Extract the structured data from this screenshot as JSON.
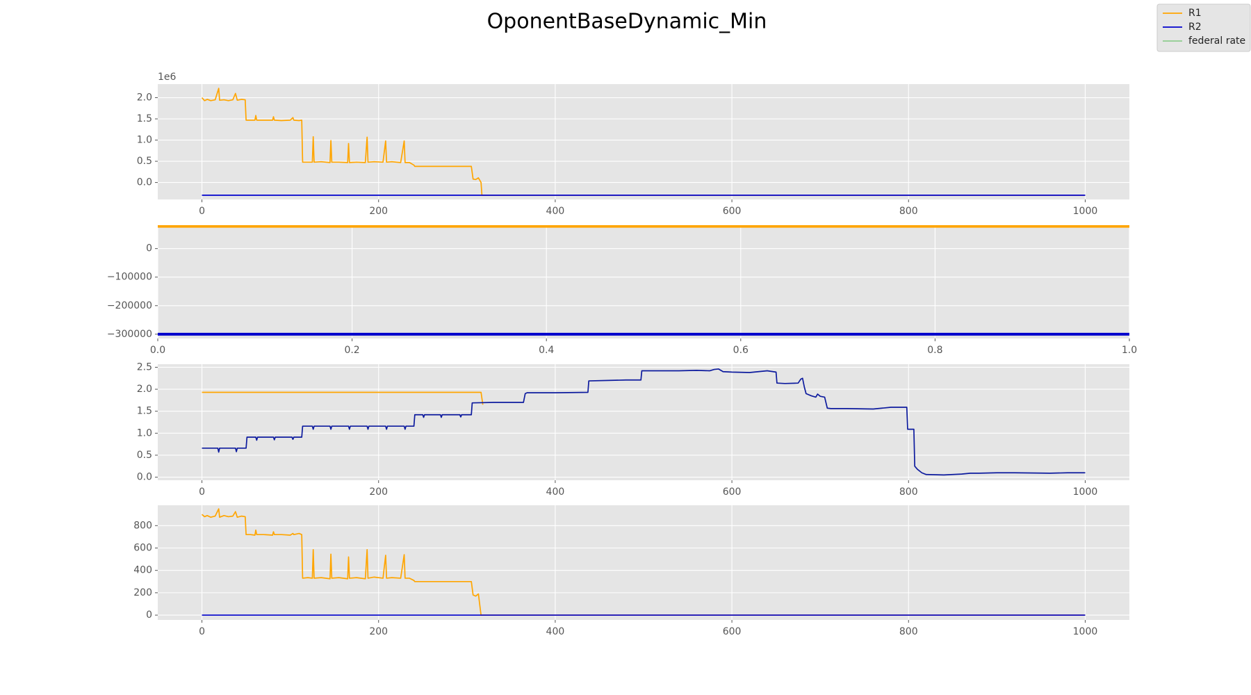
{
  "title": "OponentBaseDynamic_Min",
  "legend": {
    "loc": "upper right",
    "entries": [
      {
        "name": "R1",
        "color": "#ffa500"
      },
      {
        "name": "R2",
        "color": "#0000cd"
      },
      {
        "name": "federal rate",
        "color": "#8fcc8f"
      }
    ]
  },
  "chart_data": [
    {
      "type": "line",
      "grid": true,
      "offset_label": "1e6",
      "xlim": [
        -50,
        1050
      ],
      "xticks": [
        0,
        200,
        400,
        600,
        800,
        1000
      ],
      "ylim": [
        -0.4,
        2.32
      ],
      "yticks": [
        {
          "value": 0,
          "label": "0.0"
        },
        {
          "value": 0.5,
          "label": "0.5"
        },
        {
          "value": 1,
          "label": "1.0"
        },
        {
          "value": 1.5,
          "label": "1.5"
        },
        {
          "value": 2,
          "label": "2.0"
        }
      ],
      "series": [
        {
          "color": "#ffa500",
          "x": [
            0,
            3,
            6,
            10,
            15,
            19,
            20,
            25,
            30,
            35,
            38,
            40,
            45,
            49,
            50,
            55,
            60,
            61,
            62,
            70,
            80,
            81,
            82,
            90,
            100,
            103,
            104,
            110,
            113,
            114,
            120,
            125,
            126,
            127,
            135,
            145,
            146,
            147,
            155,
            165,
            166,
            167,
            175,
            185,
            187,
            188,
            195,
            205,
            208,
            209,
            215,
            225,
            229,
            230,
            235,
            240,
            241,
            260,
            280,
            305,
            307,
            310,
            313,
            316,
            317,
            1000
          ],
          "values": [
            2.0,
            1.93,
            1.96,
            1.93,
            1.95,
            2.22,
            1.94,
            1.95,
            1.93,
            1.95,
            2.1,
            1.94,
            1.96,
            1.95,
            1.47,
            1.47,
            1.47,
            1.58,
            1.47,
            1.47,
            1.47,
            1.55,
            1.47,
            1.46,
            1.47,
            1.53,
            1.47,
            1.46,
            1.47,
            0.48,
            0.48,
            0.48,
            1.08,
            0.48,
            0.49,
            0.47,
            0.99,
            0.48,
            0.48,
            0.47,
            0.92,
            0.47,
            0.48,
            0.47,
            1.07,
            0.48,
            0.49,
            0.48,
            0.98,
            0.48,
            0.49,
            0.47,
            0.98,
            0.47,
            0.47,
            0.41,
            0.38,
            0.38,
            0.38,
            0.38,
            0.08,
            0.07,
            0.11,
            0.0,
            -0.3,
            -0.3
          ]
        },
        {
          "color": "#0000cd",
          "x": [
            0,
            1000
          ],
          "values": [
            -0.3,
            -0.3
          ]
        }
      ]
    },
    {
      "type": "line",
      "grid": true,
      "line_width": 4,
      "xlim": [
        0,
        1
      ],
      "xticks": [
        {
          "value": 0,
          "label": "0.0"
        },
        {
          "value": 0.2,
          "label": "0.2"
        },
        {
          "value": 0.4,
          "label": "0.4"
        },
        {
          "value": 0.6,
          "label": "0.6"
        },
        {
          "value": 0.8,
          "label": "0.8"
        },
        {
          "value": 1,
          "label": "1.0"
        }
      ],
      "ylim": [
        -315000,
        82000
      ],
      "yticks": [
        {
          "value": -300000,
          "label": "−300000"
        },
        {
          "value": -200000,
          "label": "−200000"
        },
        {
          "value": -100000,
          "label": "−100000"
        },
        0
      ],
      "series": [
        {
          "color": "#ffa500",
          "x": [
            0,
            1
          ],
          "values": [
            78000,
            78000
          ]
        },
        {
          "color": "#0000cd",
          "x": [
            0,
            1
          ],
          "values": [
            -300000,
            -300000
          ]
        }
      ]
    },
    {
      "type": "line",
      "grid": true,
      "xlim": [
        -50,
        1050
      ],
      "xticks": [
        0,
        200,
        400,
        600,
        800,
        1000
      ],
      "ylim": [
        -0.07,
        2.57
      ],
      "yticks": [
        {
          "value": 0,
          "label": "0.0"
        },
        {
          "value": 0.5,
          "label": "0.5"
        },
        {
          "value": 1,
          "label": "1.0"
        },
        {
          "value": 1.5,
          "label": "1.5"
        },
        {
          "value": 2,
          "label": "2.0"
        },
        {
          "value": 2.5,
          "label": "2.5"
        }
      ],
      "series": [
        {
          "color": "#ffa500",
          "x": [
            0,
            316,
            318
          ],
          "values": [
            1.93,
            1.93,
            1.65
          ]
        },
        {
          "color": "#0d1b9e",
          "x": [
            0,
            18,
            19,
            20,
            38,
            39,
            40,
            50,
            51,
            61,
            62,
            63,
            81,
            82,
            83,
            102,
            103,
            104,
            113,
            114,
            125,
            126,
            127,
            145,
            146,
            147,
            166,
            167,
            168,
            187,
            188,
            189,
            208,
            209,
            210,
            229,
            230,
            231,
            240,
            241,
            250,
            251,
            252,
            270,
            271,
            272,
            292,
            293,
            294,
            305,
            306,
            330,
            364,
            366,
            368,
            400,
            437,
            438,
            460,
            480,
            497,
            498,
            540,
            560,
            575,
            580,
            585,
            590,
            600,
            620,
            640,
            650,
            651,
            660,
            675,
            678,
            680,
            682,
            684,
            690,
            695,
            697,
            700,
            705,
            708,
            712,
            730,
            760,
            770,
            780,
            798,
            799,
            806,
            807,
            810,
            815,
            820,
            840,
            860,
            870,
            880,
            900,
            920,
            960,
            980,
            1000
          ],
          "values": [
            0.66,
            0.66,
            0.57,
            0.66,
            0.66,
            0.58,
            0.66,
            0.66,
            0.91,
            0.91,
            0.84,
            0.91,
            0.91,
            0.85,
            0.91,
            0.91,
            0.86,
            0.91,
            0.91,
            1.16,
            1.16,
            1.09,
            1.16,
            1.16,
            1.09,
            1.16,
            1.16,
            1.09,
            1.16,
            1.16,
            1.09,
            1.16,
            1.16,
            1.09,
            1.16,
            1.16,
            1.09,
            1.16,
            1.16,
            1.42,
            1.42,
            1.36,
            1.42,
            1.42,
            1.36,
            1.42,
            1.42,
            1.37,
            1.42,
            1.42,
            1.69,
            1.7,
            1.7,
            1.9,
            1.92,
            1.92,
            1.93,
            2.19,
            2.2,
            2.21,
            2.21,
            2.42,
            2.42,
            2.43,
            2.42,
            2.45,
            2.46,
            2.4,
            2.39,
            2.38,
            2.42,
            2.39,
            2.14,
            2.13,
            2.14,
            2.23,
            2.25,
            2.05,
            1.9,
            1.85,
            1.82,
            1.89,
            1.84,
            1.82,
            1.57,
            1.56,
            1.56,
            1.55,
            1.57,
            1.59,
            1.59,
            1.09,
            1.09,
            0.25,
            0.18,
            0.1,
            0.06,
            0.05,
            0.07,
            0.09,
            0.09,
            0.1,
            0.1,
            0.09,
            0.1,
            0.1
          ]
        }
      ]
    },
    {
      "type": "line",
      "grid": true,
      "xlim": [
        -50,
        1050
      ],
      "xticks": [
        0,
        200,
        400,
        600,
        800,
        1000
      ],
      "ylim": [
        -43,
        982
      ],
      "yticks": [
        0,
        200,
        400,
        600,
        800
      ],
      "series": [
        {
          "color": "#ffa500",
          "x": [
            0,
            3,
            6,
            10,
            15,
            19,
            20,
            25,
            30,
            35,
            38,
            40,
            45,
            49,
            50,
            55,
            60,
            61,
            62,
            70,
            80,
            81,
            82,
            90,
            100,
            103,
            104,
            110,
            113,
            114,
            120,
            125,
            126,
            127,
            135,
            145,
            146,
            147,
            155,
            165,
            166,
            167,
            175,
            185,
            187,
            188,
            195,
            205,
            208,
            209,
            215,
            225,
            229,
            230,
            235,
            240,
            241,
            305,
            307,
            310,
            313,
            316,
            1000
          ],
          "values": [
            900,
            880,
            890,
            875,
            885,
            950,
            875,
            890,
            880,
            885,
            925,
            875,
            885,
            880,
            720,
            720,
            715,
            760,
            720,
            720,
            715,
            745,
            720,
            720,
            715,
            730,
            720,
            730,
            720,
            330,
            335,
            330,
            585,
            330,
            335,
            325,
            545,
            330,
            335,
            325,
            520,
            330,
            335,
            325,
            585,
            330,
            340,
            330,
            535,
            330,
            335,
            330,
            540,
            330,
            330,
            310,
            300,
            300,
            180,
            170,
            190,
            0,
            0
          ]
        },
        {
          "color": "#0000cd",
          "x": [
            0,
            1000
          ],
          "values": [
            0,
            0
          ]
        }
      ]
    }
  ]
}
